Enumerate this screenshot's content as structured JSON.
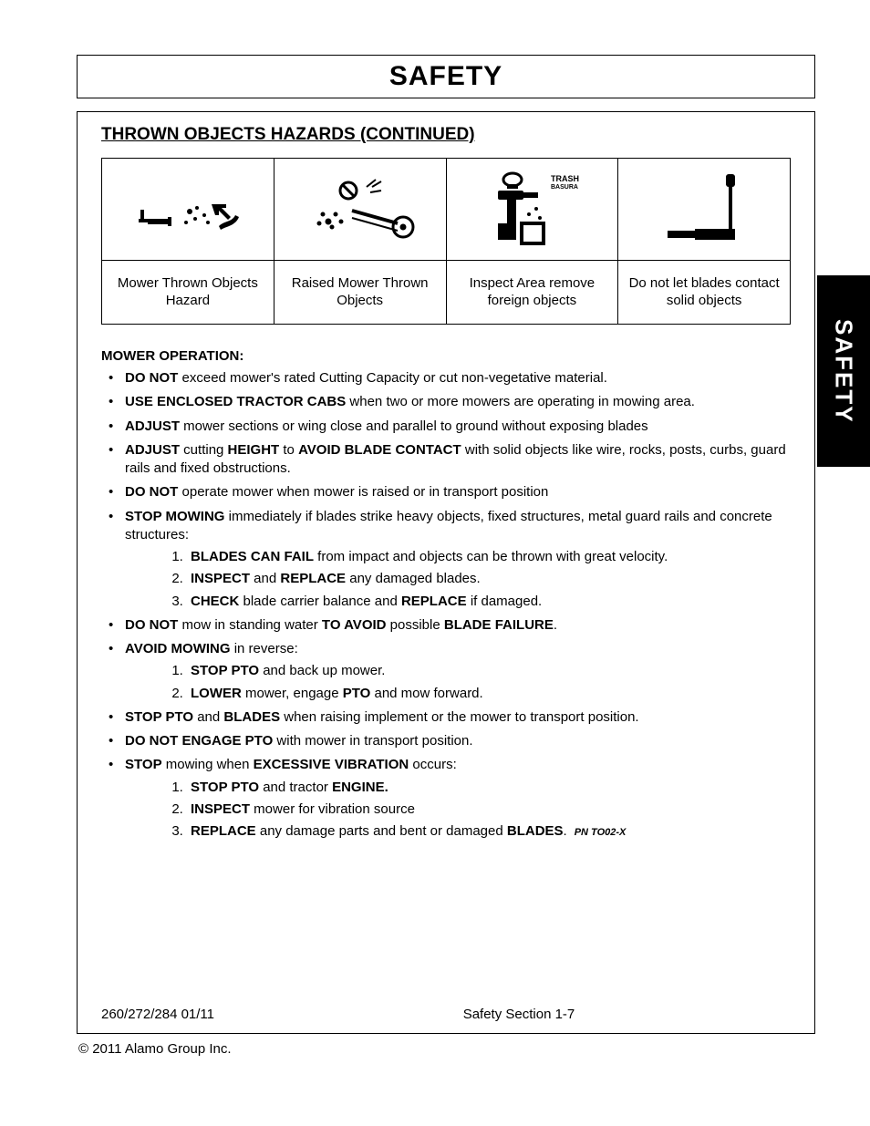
{
  "page": {
    "title": "SAFETY",
    "side_tab": "SAFETY",
    "subheading": "THROWN OBJECTS HAZARDS (CONTINUED)",
    "copyright": "© 2011 Alamo Group Inc.",
    "footer_left": "260/272/284   01/11",
    "footer_center": "Safety Section 1-7"
  },
  "icon_table": {
    "cells": [
      {
        "label": "Mower Thrown Objects Hazard"
      },
      {
        "label": "Raised Mower Thrown Objects"
      },
      {
        "label": "Inspect Area remove foreign objects",
        "small_text": "TRASH",
        "small_text2": "BASURA"
      },
      {
        "label": "Do not let blades contact solid objects"
      }
    ]
  },
  "section": {
    "heading": "MOWER OPERATION:",
    "pn": "PN TO02-X",
    "items": [
      {
        "parts": [
          {
            "b": true,
            "t": "DO NOT"
          },
          {
            "t": " exceed mower's rated Cutting Capacity or cut non-vegetative material."
          }
        ]
      },
      {
        "parts": [
          {
            "b": true,
            "t": "USE ENCLOSED TRACTOR CABS"
          },
          {
            "t": " when two or more mowers are operating in mowing area."
          }
        ]
      },
      {
        "parts": [
          {
            "b": true,
            "t": "ADJUST"
          },
          {
            "t": " mower sections or wing close and parallel to ground without exposing blades"
          }
        ]
      },
      {
        "parts": [
          {
            "b": true,
            "t": "ADJUST"
          },
          {
            "t": " cutting "
          },
          {
            "b": true,
            "t": "HEIGHT"
          },
          {
            "t": " to "
          },
          {
            "b": true,
            "t": "AVOID BLADE CONTACT"
          },
          {
            "t": " with solid objects like wire, rocks, posts, curbs, guard rails and fixed obstructions."
          }
        ]
      },
      {
        "parts": [
          {
            "b": true,
            "t": "DO NOT"
          },
          {
            "t": " operate mower when mower is raised or in transport position"
          }
        ]
      },
      {
        "parts": [
          {
            "b": true,
            "t": "STOP MOWING"
          },
          {
            "t": " immediately if blades strike heavy objects, fixed structures, metal guard rails and concrete structures:"
          }
        ],
        "sub": [
          {
            "parts": [
              {
                "b": true,
                "t": "BLADES CAN FAIL"
              },
              {
                "t": " from impact and objects can be thrown with great velocity."
              }
            ]
          },
          {
            "parts": [
              {
                "b": true,
                "t": "INSPECT"
              },
              {
                "t": " and "
              },
              {
                "b": true,
                "t": "REPLACE"
              },
              {
                "t": " any damaged blades."
              }
            ]
          },
          {
            "parts": [
              {
                "b": true,
                "t": "CHECK"
              },
              {
                "t": " blade carrier balance and "
              },
              {
                "b": true,
                "t": "REPLACE"
              },
              {
                "t": " if damaged."
              }
            ]
          }
        ]
      },
      {
        "parts": [
          {
            "b": true,
            "t": "DO NOT"
          },
          {
            "t": " mow in standing water "
          },
          {
            "b": true,
            "t": "TO AVOID"
          },
          {
            "t": " possible "
          },
          {
            "b": true,
            "t": "BLADE FAILURE"
          },
          {
            "t": "."
          }
        ]
      },
      {
        "parts": [
          {
            "b": true,
            "t": "AVOID MOWING"
          },
          {
            "t": " in reverse:"
          }
        ],
        "sub": [
          {
            "parts": [
              {
                "b": true,
                "t": "STOP PTO"
              },
              {
                "t": " and back up mower."
              }
            ]
          },
          {
            "parts": [
              {
                "b": true,
                "t": "LOWER"
              },
              {
                "t": " mower, engage "
              },
              {
                "b": true,
                "t": "PTO"
              },
              {
                "t": " and mow forward."
              }
            ]
          }
        ]
      },
      {
        "parts": [
          {
            "b": true,
            "t": "STOP PTO"
          },
          {
            "t": " and "
          },
          {
            "b": true,
            "t": "BLADES"
          },
          {
            "t": " when raising implement or the mower to transport position."
          }
        ]
      },
      {
        "parts": [
          {
            "b": true,
            "t": "DO NOT ENGAGE PTO"
          },
          {
            "t": " with mower in transport position."
          }
        ]
      },
      {
        "parts": [
          {
            "b": true,
            "t": "STOP"
          },
          {
            "t": " mowing when "
          },
          {
            "b": true,
            "t": "EXCESSIVE VIBRATION"
          },
          {
            "t": " occurs:"
          }
        ],
        "sub": [
          {
            "parts": [
              {
                "b": true,
                "t": "STOP PTO"
              },
              {
                "t": " and tractor "
              },
              {
                "b": true,
                "t": "ENGINE."
              }
            ]
          },
          {
            "parts": [
              {
                "b": true,
                "t": "INSPECT"
              },
              {
                "t": " mower for vibration source"
              }
            ]
          },
          {
            "parts": [
              {
                "b": true,
                "t": "REPLACE"
              },
              {
                "t": " any damage parts and bent or damaged "
              },
              {
                "b": true,
                "t": "BLADES"
              },
              {
                "t": "."
              }
            ],
            "pn": true
          }
        ]
      }
    ]
  },
  "colors": {
    "text": "#000000",
    "background": "#ffffff",
    "border": "#000000",
    "tab_bg": "#000000",
    "tab_fg": "#ffffff"
  }
}
